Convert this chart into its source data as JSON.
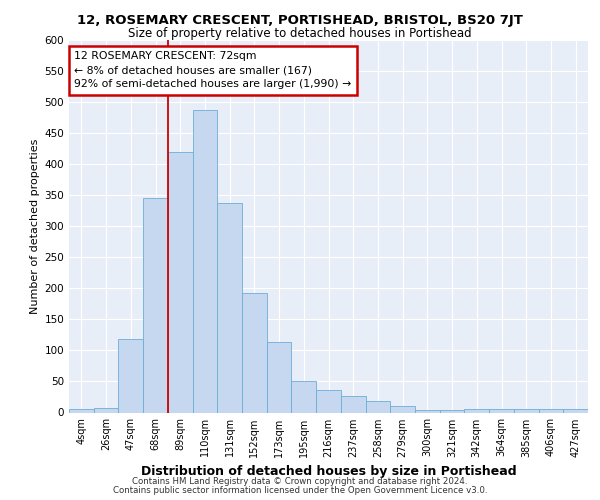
{
  "title": "12, ROSEMARY CRESCENT, PORTISHEAD, BRISTOL, BS20 7JT",
  "subtitle": "Size of property relative to detached houses in Portishead",
  "xlabel": "Distribution of detached houses by size in Portishead",
  "ylabel": "Number of detached properties",
  "categories": [
    "4sqm",
    "26sqm",
    "47sqm",
    "68sqm",
    "89sqm",
    "110sqm",
    "131sqm",
    "152sqm",
    "173sqm",
    "195sqm",
    "216sqm",
    "237sqm",
    "258sqm",
    "279sqm",
    "300sqm",
    "321sqm",
    "342sqm",
    "364sqm",
    "385sqm",
    "406sqm",
    "427sqm"
  ],
  "values": [
    5,
    7,
    118,
    345,
    420,
    488,
    337,
    193,
    113,
    50,
    36,
    27,
    18,
    10,
    4,
    4,
    5,
    5,
    5,
    5,
    5
  ],
  "bar_color": "#c5d8f0",
  "bar_edge_color": "#6baed6",
  "annotation_line1": "12 ROSEMARY CRESCENT: 72sqm",
  "annotation_line2": "← 8% of detached houses are smaller (167)",
  "annotation_line3": "92% of semi-detached houses are larger (1,990) →",
  "annotation_box_color": "#ffffff",
  "annotation_box_edge_color": "#cc0000",
  "vline_color": "#cc0000",
  "vline_x": 3.5,
  "ylim": [
    0,
    600
  ],
  "yticks": [
    0,
    50,
    100,
    150,
    200,
    250,
    300,
    350,
    400,
    450,
    500,
    550,
    600
  ],
  "bg_color": "#e8eef8",
  "grid_color": "#ffffff",
  "footer_line1": "Contains HM Land Registry data © Crown copyright and database right 2024.",
  "footer_line2": "Contains public sector information licensed under the Open Government Licence v3.0."
}
